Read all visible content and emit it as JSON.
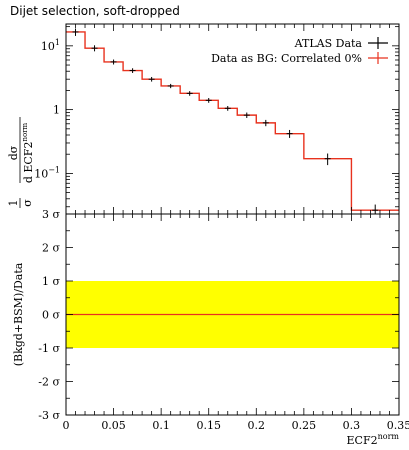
{
  "header": {
    "title": "Dijet selection, soft-dropped"
  },
  "chart_data": [
    {
      "type": "line",
      "panel": "main",
      "yscale": "log",
      "ylim": [
        0.0231,
        22
      ],
      "xlim": [
        0,
        0.35
      ],
      "ylabel": {
        "frac_num": "1",
        "frac_den": "σ",
        "deriv_num": "dσ",
        "deriv_den": "d ECF2",
        "deriv_den_sup": "norm"
      },
      "ytick_labels": [
        {
          "value": 10,
          "base": "10",
          "exp": "1"
        },
        {
          "value": 1,
          "base": "1",
          "exp": ""
        },
        {
          "value": 0.1,
          "base": "10",
          "exp": "−1"
        }
      ],
      "legend": {
        "placement": "top-right",
        "entries": [
          "ATLAS Data",
          "Data as BG: Correlated 0%"
        ]
      },
      "colors": {
        "data": "#000000",
        "prediction": "#e8321e"
      },
      "bins": [
        {
          "low": 0.0,
          "high": 0.02,
          "value": 16.5,
          "err": 2.2
        },
        {
          "low": 0.02,
          "high": 0.04,
          "value": 9.2,
          "err": 1.0
        },
        {
          "low": 0.04,
          "high": 0.06,
          "value": 5.6,
          "err": 0.5
        },
        {
          "low": 0.06,
          "high": 0.08,
          "value": 4.1,
          "err": 0.35
        },
        {
          "low": 0.08,
          "high": 0.1,
          "value": 3.0,
          "err": 0.25
        },
        {
          "low": 0.1,
          "high": 0.12,
          "value": 2.35,
          "err": 0.18
        },
        {
          "low": 0.12,
          "high": 0.14,
          "value": 1.8,
          "err": 0.15
        },
        {
          "low": 0.14,
          "high": 0.16,
          "value": 1.4,
          "err": 0.12
        },
        {
          "low": 0.16,
          "high": 0.18,
          "value": 1.05,
          "err": 0.09
        },
        {
          "low": 0.18,
          "high": 0.2,
          "value": 0.82,
          "err": 0.08
        },
        {
          "low": 0.2,
          "high": 0.22,
          "value": 0.62,
          "err": 0.07
        },
        {
          "low": 0.22,
          "high": 0.25,
          "value": 0.42,
          "err": 0.06
        },
        {
          "low": 0.25,
          "high": 0.3,
          "value": 0.17,
          "err": 0.035
        },
        {
          "low": 0.3,
          "high": 0.35,
          "value": 0.0265,
          "err": 0.006
        }
      ]
    },
    {
      "type": "line",
      "panel": "ratio",
      "ylabel": "(Bkgd+BSM)/Data",
      "ylim": [
        -3,
        3
      ],
      "yticks": [
        {
          "value": 3,
          "label": "3 σ"
        },
        {
          "value": 2,
          "label": "2 σ"
        },
        {
          "value": 1,
          "label": "1 σ"
        },
        {
          "value": 0,
          "label": "0 σ"
        },
        {
          "value": -1,
          "label": "-1 σ"
        },
        {
          "value": -2,
          "label": "-2 σ"
        },
        {
          "value": -3,
          "label": "-3 σ"
        }
      ],
      "band": {
        "low": -1,
        "high": 1,
        "color": "#ffff00"
      },
      "line": {
        "value": 0,
        "color": "#e8321e"
      },
      "xlim": [
        0,
        0.35
      ],
      "xticks": [
        {
          "value": 0,
          "label": "0"
        },
        {
          "value": 0.05,
          "label": "0.05"
        },
        {
          "value": 0.1,
          "label": "0.1"
        },
        {
          "value": 0.15,
          "label": "0.15"
        },
        {
          "value": 0.2,
          "label": "0.2"
        },
        {
          "value": 0.25,
          "label": "0.25"
        },
        {
          "value": 0.3,
          "label": "0.3"
        },
        {
          "value": 0.35,
          "label": "0.35"
        }
      ],
      "xlabel": {
        "base": "ECF2",
        "sup": "norm"
      }
    }
  ]
}
